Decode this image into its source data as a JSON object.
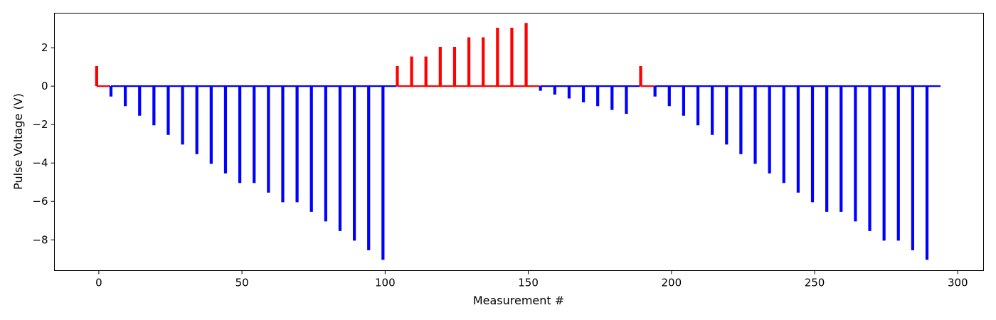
{
  "chart_data": {
    "type": "line",
    "title": "",
    "xlabel": "Measurement #",
    "ylabel": "Pulse Voltage (V)",
    "xlim": [
      -15.5,
      309
    ],
    "ylim": [
      -9.6,
      3.8
    ],
    "x_ticks": [
      0,
      50,
      100,
      150,
      200,
      250,
      300
    ],
    "y_ticks": [
      -8,
      -6,
      -4,
      -2,
      0,
      2
    ],
    "x_tick_labels": [
      "0",
      "50",
      "100",
      "150",
      "200",
      "250",
      "300"
    ],
    "y_tick_labels": [
      "−8",
      "−6",
      "−4",
      "−2",
      "0",
      "2"
    ],
    "grid": false,
    "legend": "none",
    "pulse_width": 0.5,
    "baseline": 0,
    "colors": {
      "positive": "#ff0000",
      "negative": "#0000ff"
    },
    "segments": [
      {
        "color": "#ff0000",
        "x_start": -1,
        "x_end": 4,
        "pulses": [
          [
            -1,
            1.0
          ]
        ]
      },
      {
        "color": "#0000ff",
        "x_start": 4,
        "x_end": 104,
        "pulses": [
          [
            4,
            -0.5
          ],
          [
            9,
            -1.0
          ],
          [
            14,
            -1.5
          ],
          [
            19,
            -2.0
          ],
          [
            24,
            -2.5
          ],
          [
            29,
            -3.0
          ],
          [
            34,
            -3.5
          ],
          [
            39,
            -4.0
          ],
          [
            44,
            -4.5
          ],
          [
            49,
            -5.0
          ],
          [
            54,
            -5.0
          ],
          [
            59,
            -5.5
          ],
          [
            64,
            -6.0
          ],
          [
            69,
            -6.0
          ],
          [
            74,
            -6.5
          ],
          [
            79,
            -7.0
          ],
          [
            84,
            -7.5
          ],
          [
            89,
            -8.0
          ],
          [
            94,
            -8.5
          ],
          [
            99,
            -9.0
          ]
        ]
      },
      {
        "color": "#ff0000",
        "x_start": 104,
        "x_end": 154,
        "pulses": [
          [
            104,
            1.0
          ],
          [
            109,
            1.5
          ],
          [
            114,
            1.5
          ],
          [
            119,
            2.0
          ],
          [
            124,
            2.0
          ],
          [
            129,
            2.5
          ],
          [
            134,
            2.5
          ],
          [
            139,
            3.0
          ],
          [
            144,
            3.0
          ],
          [
            149,
            3.25
          ]
        ]
      },
      {
        "color": "#0000ff",
        "x_start": 154,
        "x_end": 189,
        "pulses": [
          [
            154,
            -0.2
          ],
          [
            159,
            -0.4
          ],
          [
            164,
            -0.6
          ],
          [
            169,
            -0.8
          ],
          [
            174,
            -1.0
          ],
          [
            179,
            -1.2
          ],
          [
            184,
            -1.4
          ]
        ]
      },
      {
        "color": "#ff0000",
        "x_start": 189,
        "x_end": 194,
        "pulses": [
          [
            189,
            1.0
          ]
        ]
      },
      {
        "color": "#0000ff",
        "x_start": 194,
        "x_end": 294,
        "pulses": [
          [
            194,
            -0.5
          ],
          [
            199,
            -1.0
          ],
          [
            204,
            -1.5
          ],
          [
            209,
            -2.0
          ],
          [
            214,
            -2.5
          ],
          [
            219,
            -3.0
          ],
          [
            224,
            -3.5
          ],
          [
            229,
            -4.0
          ],
          [
            234,
            -4.5
          ],
          [
            239,
            -5.0
          ],
          [
            244,
            -5.5
          ],
          [
            249,
            -6.0
          ],
          [
            254,
            -6.5
          ],
          [
            259,
            -6.5
          ],
          [
            264,
            -7.0
          ],
          [
            269,
            -7.5
          ],
          [
            274,
            -8.0
          ],
          [
            279,
            -8.0
          ],
          [
            284,
            -8.5
          ],
          [
            289,
            -9.0
          ]
        ]
      }
    ]
  }
}
